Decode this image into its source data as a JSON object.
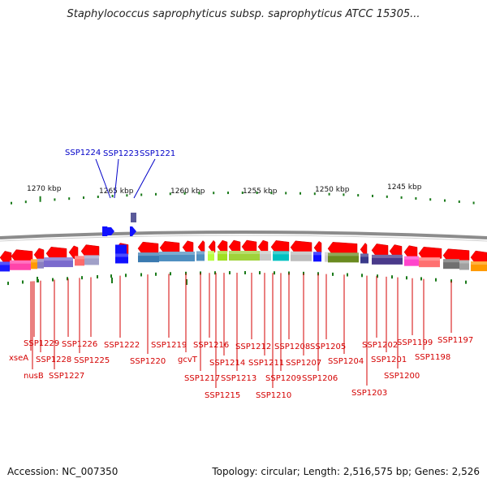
{
  "title": "Staphylococcus saprophyticus subsp. saprophyticus ATCC 15305...",
  "footer": {
    "accession": "Accession: NC_007350",
    "summary": "Topology: circular; Length: 2,516,575 bp; Genes: 2,526"
  },
  "scale_labels": [
    "1270 kbp",
    "1265 kbp",
    "1260 kbp",
    "1255 kbp",
    "1250 kbp",
    "1245 kbp"
  ],
  "colors": {
    "gene_label": "#d40000",
    "upper_label": "#0000c8",
    "gene_arrow": "#ff0000",
    "tick": "#1a7a1a",
    "backbone": "#8c8c8c"
  },
  "upper_labels": [
    "SSP1224",
    "SSP1223",
    "SSP1221"
  ],
  "gene_labels": [
    "SSP1229",
    "xseA",
    "nusB",
    "SSP1228",
    "SSP1227",
    "SSP1226",
    "SSP1225",
    "SSP1222",
    "SSP1220",
    "SSP1219",
    "gcvT",
    "SSP1217",
    "SSP1216",
    "SSP1215",
    "SSP1214",
    "SSP1213",
    "SSP1212",
    "SSP1211",
    "SSP1210",
    "SSP1209",
    "SSP1208",
    "SSP1207",
    "SSP1206",
    "SSP1205",
    "SSP1204",
    "SSP1203",
    "SSP1202",
    "SSP1201",
    "SSP1200",
    "SSP1199",
    "SSP1198",
    "SSP1197"
  ]
}
